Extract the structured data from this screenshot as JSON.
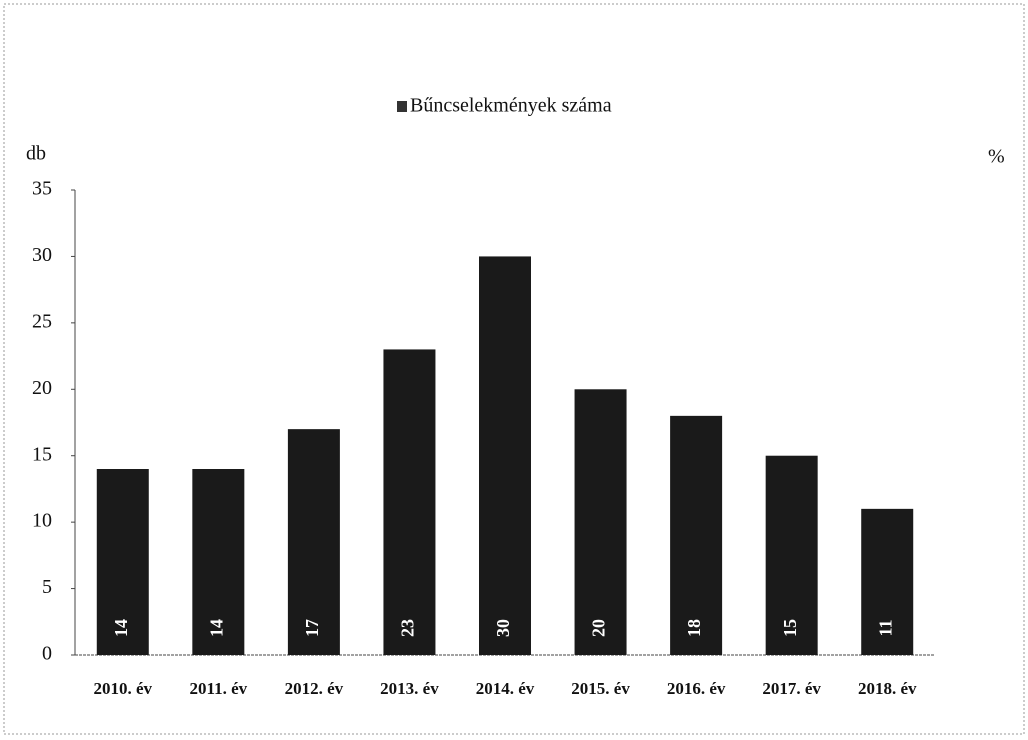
{
  "chart_data": {
    "type": "bar",
    "y_label_left": "db",
    "y_label_right": "%",
    "categories": [
      "2010. év",
      "2011. év",
      "2012. év",
      "2013. év",
      "2014. év",
      "2015. év",
      "2016. év",
      "2017. év",
      "2018. év"
    ],
    "series": [
      {
        "name": "Bűncselekmények száma",
        "color": "#1a1a1a",
        "values": [
          14,
          14,
          17,
          23,
          30,
          20,
          18,
          15,
          11
        ]
      }
    ],
    "ylim": [
      0,
      35
    ],
    "yticks": [
      0,
      5,
      10,
      15,
      20,
      25,
      30,
      35
    ],
    "grid": false,
    "legend": "top"
  }
}
